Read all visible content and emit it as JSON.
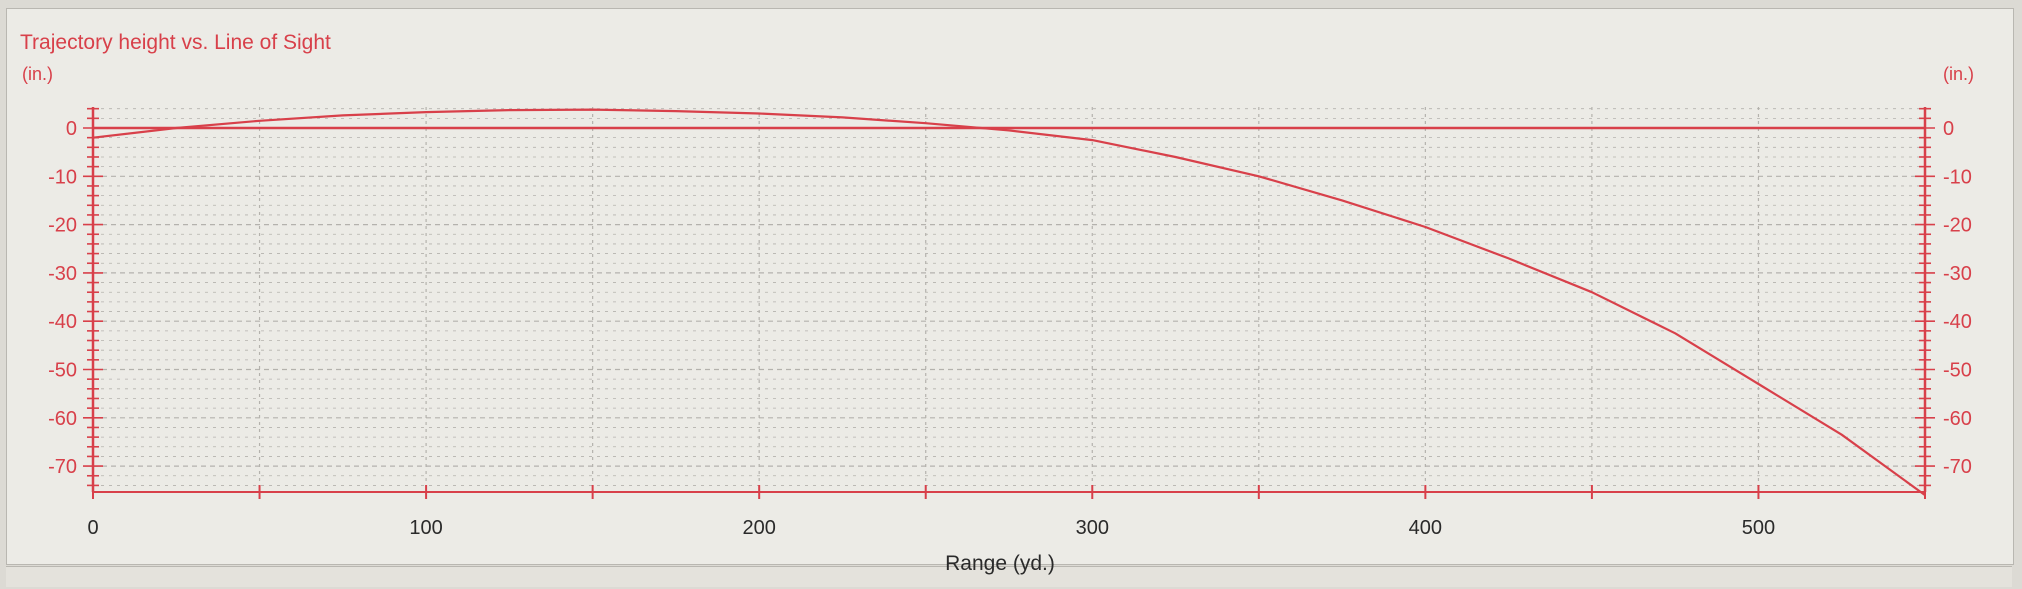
{
  "chart_data": {
    "type": "line",
    "title": "Trajectory height vs. Line of Sight",
    "ylabel_left": "(in.)",
    "ylabel_right": "(in.)",
    "xlabel": "Range (yd.)",
    "xlim": [
      0,
      550
    ],
    "ylim": [
      -75,
      5
    ],
    "x_major_ticks": [
      0,
      100,
      200,
      300,
      400,
      500
    ],
    "x_minor_ticks": [
      50,
      150,
      250,
      350,
      450,
      550
    ],
    "y_ticks": [
      0,
      -10,
      -20,
      -30,
      -40,
      -50,
      -60,
      -70
    ],
    "grid": true,
    "series": [
      {
        "role": "trajectory",
        "x": [
          0,
          25,
          50,
          75,
          100,
          125,
          150,
          175,
          200,
          225,
          250,
          275,
          300,
          325,
          350,
          375,
          400,
          425,
          450,
          475,
          500,
          525,
          550
        ],
        "y": [
          -2,
          0,
          1.5,
          2.6,
          3.3,
          3.7,
          3.8,
          3.5,
          3.0,
          2.2,
          1.0,
          -0.5,
          -2.5,
          -6,
          -10,
          -15,
          -20.5,
          -27,
          -34,
          -42.5,
          -53,
          -63.5,
          -76
        ]
      },
      {
        "role": "line-of-sight",
        "x": [
          0,
          550
        ],
        "y": [
          0,
          0
        ]
      }
    ],
    "colors": {
      "trajectory": "#d8404a",
      "line_of_sight": "#d8404a",
      "grid": "#b4b2ad",
      "axis": "#d8404a"
    }
  }
}
